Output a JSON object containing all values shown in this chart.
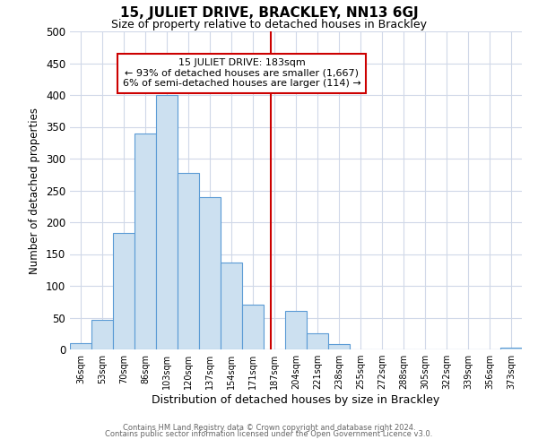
{
  "title": "15, JULIET DRIVE, BRACKLEY, NN13 6GJ",
  "subtitle": "Size of property relative to detached houses in Brackley",
  "xlabel": "Distribution of detached houses by size in Brackley",
  "ylabel": "Number of detached properties",
  "bin_labels": [
    "36sqm",
    "53sqm",
    "70sqm",
    "86sqm",
    "103sqm",
    "120sqm",
    "137sqm",
    "154sqm",
    "171sqm",
    "187sqm",
    "204sqm",
    "221sqm",
    "238sqm",
    "255sqm",
    "272sqm",
    "288sqm",
    "305sqm",
    "322sqm",
    "339sqm",
    "356sqm",
    "373sqm"
  ],
  "bar_heights": [
    10,
    47,
    183,
    340,
    400,
    278,
    240,
    136,
    70,
    0,
    61,
    25,
    8,
    0,
    0,
    0,
    0,
    0,
    0,
    0,
    3
  ],
  "bar_color": "#cce0f0",
  "bar_edge_color": "#5b9bd5",
  "vline_color": "#cc0000",
  "ylim": [
    0,
    500
  ],
  "yticks": [
    0,
    50,
    100,
    150,
    200,
    250,
    300,
    350,
    400,
    450,
    500
  ],
  "annotation_title": "15 JULIET DRIVE: 183sqm",
  "annotation_line1": "← 93% of detached houses are smaller (1,667)",
  "annotation_line2": "6% of semi-detached houses are larger (114) →",
  "annotation_box_color": "#ffffff",
  "annotation_box_edge": "#cc0000",
  "footer1": "Contains HM Land Registry data © Crown copyright and database right 2024.",
  "footer2": "Contains public sector information licensed under the Open Government Licence v3.0.",
  "background_color": "#ffffff",
  "grid_color": "#d0d8e8"
}
